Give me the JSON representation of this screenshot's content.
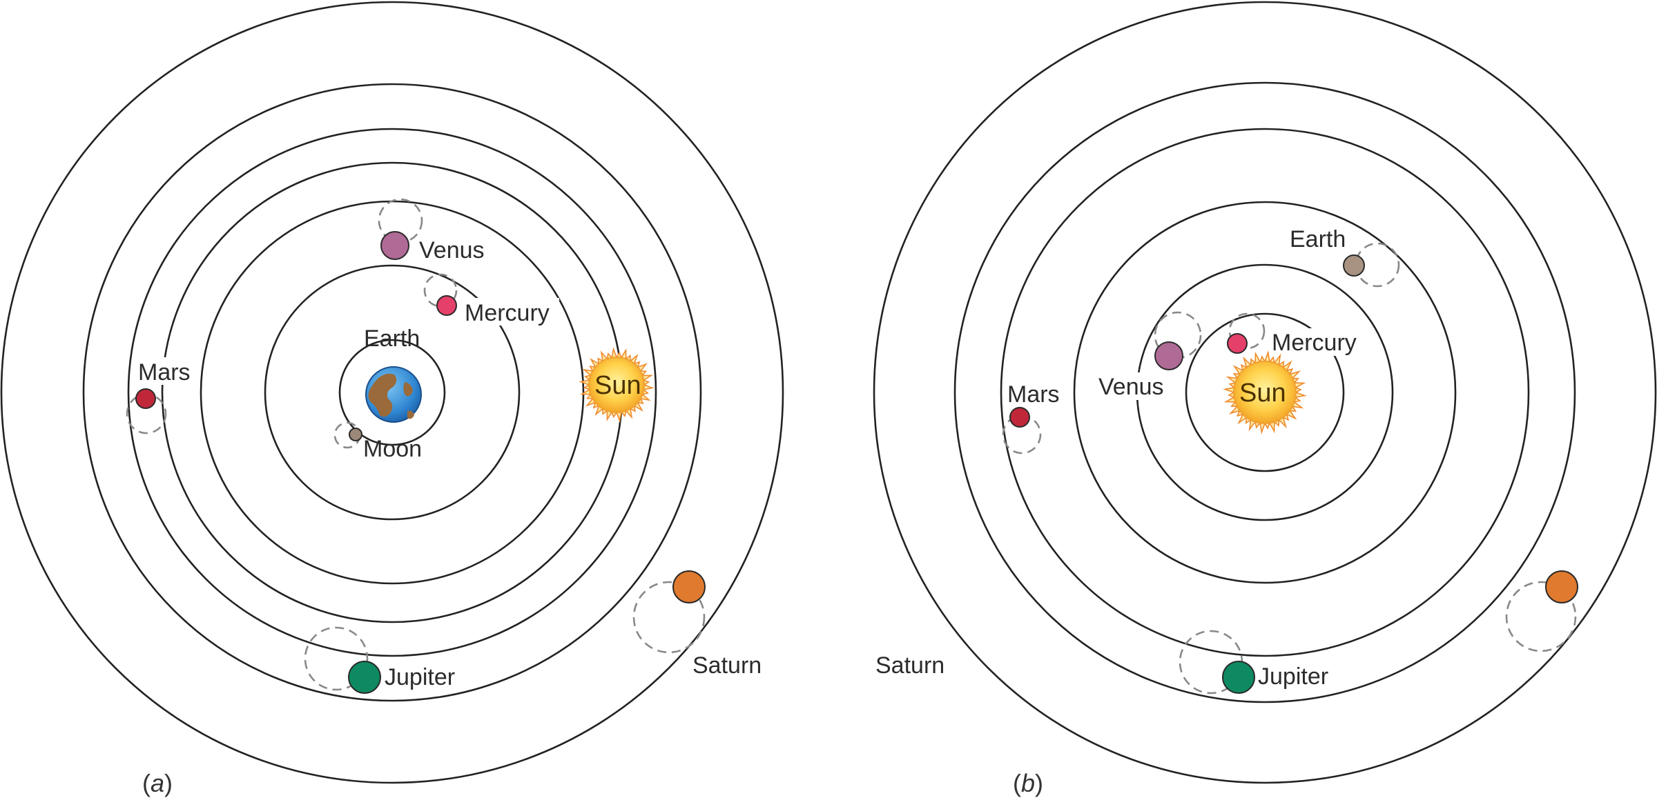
{
  "panels": [
    {
      "id": "a",
      "label_open": "(",
      "label_letter": "a",
      "label_close": ")",
      "bodies": {
        "earth": "Earth",
        "moon": "Moon",
        "mercury": "Mercury",
        "venus": "Venus",
        "sun": "Sun",
        "mars": "Mars",
        "jupiter": "Jupiter",
        "saturn": "Saturn"
      }
    },
    {
      "id": "b",
      "label_open": "(",
      "label_letter": "b",
      "label_close": ")",
      "bodies": {
        "sun": "Sun",
        "mercury": "Mercury",
        "venus": "Venus",
        "earth": "Earth",
        "mars": "Mars",
        "jupiter": "Jupiter",
        "saturn": "Saturn"
      }
    }
  ],
  "colors": {
    "venus": "#b06a96",
    "mercury": "#e5406a",
    "mars": "#c0283a",
    "jupiter": "#0e8a62",
    "saturn": "#e07a2e",
    "moon": "#9c8878",
    "earth_b": "#a89382",
    "sun_core": "#ffd75a",
    "sun_rays": "#ee8a2a",
    "earth_ocean": "#3d8fd6",
    "earth_land": "#9a6a3a"
  }
}
